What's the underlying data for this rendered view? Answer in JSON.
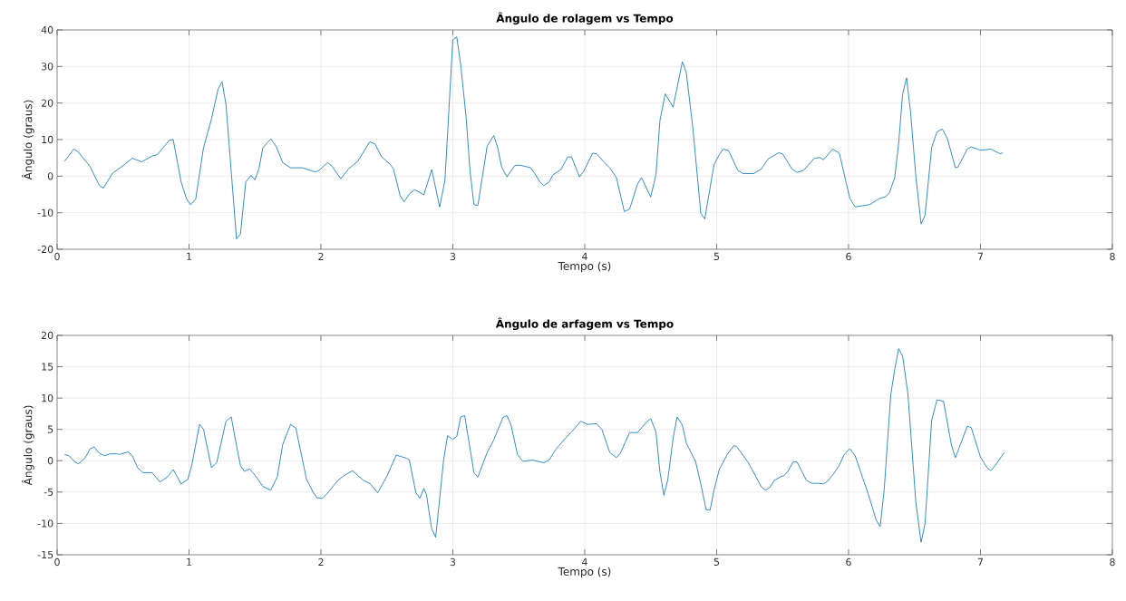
{
  "chart_data": [
    {
      "type": "line",
      "title": "**Ângulo de rolagem vs Tempo**",
      "xlabel": "Tempo (s)",
      "ylabel": "Ângulo (graus)",
      "color": "#0072bd",
      "grid": true,
      "xlim": [
        0,
        8
      ],
      "ylim": [
        -20,
        40
      ],
      "xticks": [
        0,
        1,
        2,
        3,
        4,
        5,
        6,
        7,
        8
      ],
      "yticks": [
        -20,
        -10,
        0,
        10,
        20,
        30,
        40
      ],
      "x": [
        0.057,
        0.126,
        0.16,
        0.25,
        0.32,
        0.35,
        0.42,
        0.5,
        0.57,
        0.64,
        0.72,
        0.76,
        0.85,
        0.88,
        0.94,
        0.98,
        1.01,
        1.05,
        1.11,
        1.17,
        1.22,
        1.25,
        1.28,
        1.36,
        1.39,
        1.43,
        1.47,
        1.5,
        1.53,
        1.56,
        1.62,
        1.66,
        1.71,
        1.77,
        1.86,
        1.95,
        1.98,
        2.05,
        2.08,
        2.15,
        2.21,
        2.28,
        2.37,
        2.41,
        2.46,
        2.52,
        2.55,
        2.6,
        2.63,
        2.67,
        2.71,
        2.78,
        2.84,
        2.9,
        2.94,
        3.0,
        3.03,
        3.06,
        3.1,
        3.13,
        3.16,
        3.19,
        3.26,
        3.31,
        3.34,
        3.37,
        3.41,
        3.47,
        3.51,
        3.59,
        3.62,
        3.66,
        3.69,
        3.73,
        3.76,
        3.82,
        3.87,
        3.9,
        3.96,
        3.99,
        4.06,
        4.09,
        4.15,
        4.19,
        4.24,
        4.3,
        4.34,
        4.4,
        4.43,
        4.5,
        4.54,
        4.57,
        4.61,
        4.67,
        4.74,
        4.77,
        4.82,
        4.88,
        4.91,
        4.98,
        5.02,
        5.05,
        5.09,
        5.16,
        5.2,
        5.28,
        5.34,
        5.39,
        5.47,
        5.5,
        5.57,
        5.61,
        5.66,
        5.74,
        5.78,
        5.81,
        5.88,
        5.93,
        6.01,
        6.05,
        6.16,
        6.24,
        6.28,
        6.31,
        6.35,
        6.38,
        6.41,
        6.44,
        6.47,
        6.51,
        6.55,
        6.58,
        6.63,
        6.67,
        6.71,
        6.75,
        6.81,
        6.83,
        6.9,
        6.93,
        7.0,
        7.08,
        7.15,
        7.17
      ],
      "values": [
        4.1,
        7.4,
        6.6,
        2.6,
        -2.5,
        -3.3,
        0.8,
        2.9,
        4.9,
        3.9,
        5.5,
        5.9,
        9.8,
        10,
        -1.6,
        -6.1,
        -7.8,
        -6.4,
        7.8,
        15.6,
        23.8,
        25.8,
        19.7,
        -17.2,
        -15.8,
        -1.6,
        0.2,
        -1,
        2,
        7.8,
        10.2,
        8.2,
        3.7,
        2.3,
        2.3,
        1.2,
        1.4,
        3.7,
        2.9,
        -0.7,
        2,
        4.1,
        9.4,
        8.8,
        5.3,
        3.4,
        2,
        -5.3,
        -7,
        -4.9,
        -3.7,
        -5.1,
        1.8,
        -8.4,
        -1.2,
        37.3,
        38.1,
        30.3,
        16.4,
        1.6,
        -7.8,
        -8,
        8.2,
        11.1,
        7.8,
        2.5,
        -0.2,
        2.9,
        3,
        2.3,
        0.8,
        -1.6,
        -2.6,
        -1.6,
        0.4,
        1.8,
        5.2,
        5.3,
        -0.2,
        1.2,
        6.3,
        6.1,
        3.7,
        2.3,
        -0.4,
        -9.7,
        -9,
        -2.2,
        -0.4,
        -5.7,
        0.4,
        15.2,
        22.5,
        18.9,
        31.3,
        28.3,
        13.1,
        -10.2,
        -11.7,
        3.1,
        5.9,
        7.4,
        7,
        1.6,
        0.7,
        0.7,
        2,
        4.7,
        6.4,
        6.1,
        2,
        1,
        1.6,
        4.9,
        5.1,
        4.5,
        7.4,
        6.3,
        -6.1,
        -8.4,
        -7.8,
        -6,
        -5.7,
        -4.5,
        -0.4,
        9,
        22.5,
        26.9,
        17.6,
        0,
        -13.1,
        -10.7,
        7.8,
        12.1,
        12.9,
        10.2,
        2.3,
        2.5,
        7.4,
        8,
        7.1,
        7.4,
        6.1,
        6.4
      ]
    },
    {
      "type": "line",
      "title": "**Ângulo de arfagem vs Tempo**",
      "xlabel": "Tempo (s)",
      "ylabel": "Ângulo (graus)",
      "color": "#0072bd",
      "grid": true,
      "xlim": [
        0,
        8
      ],
      "ylim": [
        -15,
        20
      ],
      "xticks": [
        0,
        1,
        2,
        3,
        4,
        5,
        6,
        7,
        8
      ],
      "yticks": [
        -15,
        -10,
        -5,
        0,
        5,
        10,
        15,
        20
      ],
      "x": [
        0.057,
        0.09,
        0.13,
        0.16,
        0.21,
        0.25,
        0.28,
        0.32,
        0.36,
        0.4,
        0.45,
        0.47,
        0.54,
        0.57,
        0.61,
        0.65,
        0.72,
        0.78,
        0.84,
        0.88,
        0.94,
        0.99,
        1.02,
        1.08,
        1.11,
        1.17,
        1.21,
        1.28,
        1.32,
        1.35,
        1.39,
        1.42,
        1.46,
        1.5,
        1.56,
        1.62,
        1.67,
        1.71,
        1.77,
        1.81,
        1.89,
        1.94,
        1.97,
        2.01,
        2.04,
        2.13,
        2.18,
        2.24,
        2.32,
        2.37,
        2.43,
        2.5,
        2.57,
        2.65,
        2.67,
        2.72,
        2.75,
        2.78,
        2.8,
        2.84,
        2.87,
        2.93,
        2.96,
        3.0,
        3.03,
        3.06,
        3.09,
        3.16,
        3.19,
        3.26,
        3.31,
        3.38,
        3.41,
        3.44,
        3.49,
        3.53,
        3.6,
        3.69,
        3.73,
        3.78,
        3.85,
        3.9,
        3.97,
        4.02,
        4.09,
        4.13,
        4.19,
        4.24,
        4.27,
        4.34,
        4.4,
        4.47,
        4.5,
        4.54,
        4.57,
        4.6,
        4.63,
        4.67,
        4.7,
        4.74,
        4.77,
        4.84,
        4.88,
        4.92,
        4.95,
        4.98,
        5.02,
        5.08,
        5.13,
        5.15,
        5.24,
        5.34,
        5.37,
        5.4,
        5.44,
        5.49,
        5.51,
        5.54,
        5.58,
        5.61,
        5.68,
        5.72,
        5.77,
        5.81,
        5.84,
        5.89,
        5.93,
        5.97,
        6.01,
        6.05,
        6.12,
        6.16,
        6.21,
        6.24,
        6.27,
        6.32,
        6.35,
        6.38,
        6.41,
        6.45,
        6.51,
        6.55,
        6.58,
        6.63,
        6.67,
        6.72,
        6.78,
        6.81,
        6.83,
        6.9,
        6.93,
        7.0,
        7.05,
        7.08,
        7.11,
        7.18
      ],
      "values": [
        1.0,
        0.8,
        -0.1,
        -0.5,
        0.4,
        1.9,
        2.2,
        1.2,
        0.8,
        1.1,
        1.1,
        1,
        1.4,
        0.8,
        -1.1,
        -1.9,
        -1.9,
        -3.4,
        -2.5,
        -1.4,
        -3.7,
        -3,
        -0.8,
        5.8,
        5,
        -1.1,
        -0.3,
        6.3,
        7,
        3.5,
        -0.8,
        -1.7,
        -1.3,
        -2.3,
        -4.1,
        -4.7,
        -2.5,
        2.6,
        5.8,
        5.2,
        -2.9,
        -5,
        -5.9,
        -6,
        -5.4,
        -3.1,
        -2.3,
        -1.6,
        -3.1,
        -3.6,
        -5.1,
        -2.5,
        0.9,
        0.4,
        0.1,
        -5.1,
        -6,
        -4.4,
        -5.4,
        -10.9,
        -12.2,
        0.1,
        4,
        3.4,
        3.9,
        7,
        7.2,
        -1.9,
        -2.6,
        1.3,
        3.3,
        6.9,
        7.2,
        5.8,
        1,
        -0.1,
        0.1,
        -0.3,
        0.1,
        1.8,
        3.5,
        4.6,
        6.3,
        5.8,
        5.9,
        5,
        1.3,
        0.5,
        1.2,
        4.5,
        4.5,
        6.2,
        6.7,
        4.6,
        -1.8,
        -5.5,
        -3,
        3.6,
        7,
        5.7,
        2.8,
        -0.1,
        -3.7,
        -7.8,
        -7.9,
        -4.7,
        -1.4,
        1,
        2.4,
        2.3,
        -0.3,
        -4.2,
        -4.7,
        -4.3,
        -3.1,
        -2.5,
        -2.4,
        -1.7,
        -0.2,
        -0.2,
        -3.1,
        -3.6,
        -3.6,
        -3.7,
        -3.3,
        -2,
        -0.7,
        1.1,
        1.9,
        0.8,
        -3.5,
        -6,
        -9.5,
        -10.5,
        -4.7,
        10.5,
        14.6,
        17.9,
        16.7,
        10.7,
        -6.6,
        -13,
        -10,
        6.4,
        9.7,
        9.5,
        2.5,
        0.5,
        1.6,
        5.5,
        5.3,
        0.6,
        -1.1,
        -1.6,
        -0.8,
        1.3
      ]
    }
  ]
}
